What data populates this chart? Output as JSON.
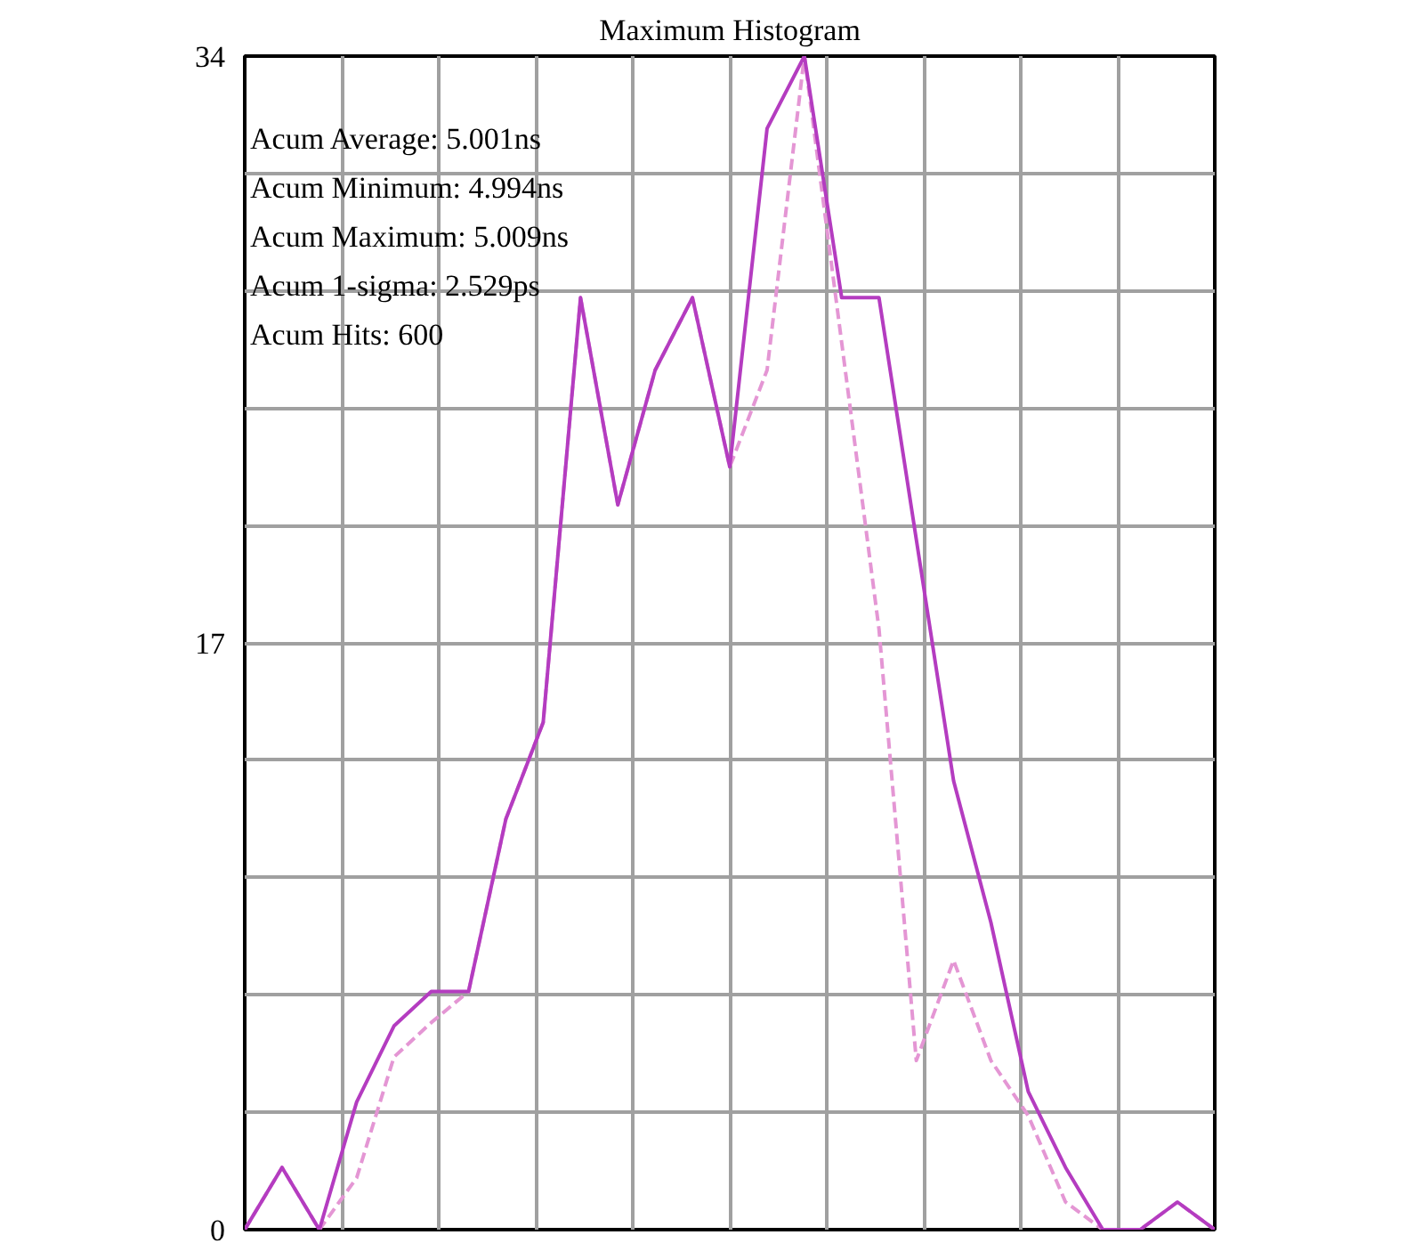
{
  "chart_data": {
    "type": "line",
    "title": "Maximum Histogram",
    "categories": [
      null,
      null,
      null,
      null,
      null,
      null,
      null,
      null,
      null,
      null,
      null,
      null,
      null,
      null,
      null,
      null,
      null,
      null,
      null,
      null,
      null,
      null,
      null,
      null,
      null,
      null,
      null
    ],
    "ylim": [
      0,
      34
    ],
    "yticks": [
      0,
      {
        "value": 3.4,
        "label": null
      },
      {
        "value": 6.8,
        "label": null
      },
      {
        "value": 10.2,
        "label": null
      },
      {
        "value": 13.6,
        "label": null
      },
      17,
      {
        "value": 20.4,
        "label": null
      },
      {
        "value": 23.8,
        "label": null
      },
      {
        "value": 27.2,
        "label": null
      },
      {
        "value": 30.6,
        "label": null
      },
      34
    ],
    "tick_labels": "y",
    "grid": true,
    "marker": "none",
    "series": [
      {
        "color": "#e496d4",
        "line_style": "dashed",
        "values": [
          0,
          1.8,
          0,
          1.5,
          5,
          6,
          6.9,
          11.9,
          14.7,
          27,
          21,
          24.9,
          27,
          22.1,
          24.9,
          34,
          25.7,
          17.4,
          4.9,
          7.8,
          4.9,
          3.3,
          0.8,
          0,
          0,
          0.8,
          0
        ]
      },
      {
        "color": "#b43cc0",
        "line_style": "solid",
        "values": [
          0,
          1.8,
          0,
          3.7,
          5.9,
          6.9,
          6.9,
          11.9,
          14.7,
          27,
          21,
          24.9,
          27,
          22.1,
          31.9,
          34,
          27,
          27,
          20,
          13,
          8.9,
          4,
          1.8,
          0,
          0,
          0.8,
          0
        ]
      }
    ],
    "annotations": [
      "Acum Average: 5.001ns",
      "Acum Minimum: 4.994ns",
      "Acum Maximum: 5.009ns",
      "Acum 1-sigma: 2.529ps",
      "Acum Hits: 600"
    ]
  }
}
